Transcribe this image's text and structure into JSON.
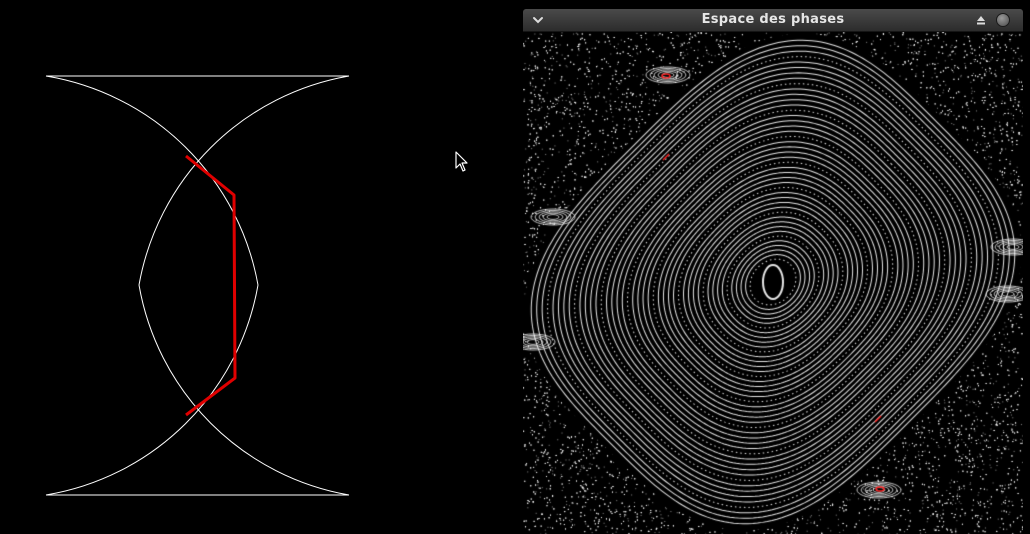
{
  "window": {
    "title": "Espace des phases",
    "menu_icon": "chevron-down-icon",
    "eject_icon": "eject-icon",
    "close_icon": "close-circle-icon"
  },
  "colors": {
    "background": "#000000",
    "billiard_outline": "#ffffff",
    "trajectory": "#e00000",
    "phase_points": "#ffffff",
    "phase_highlight": "#ff2020",
    "titlebar": "#3a3a3a",
    "title_text": "#e6e6e6"
  },
  "billiard": {
    "description_icon": "billiard-table-drawing"
  }
}
